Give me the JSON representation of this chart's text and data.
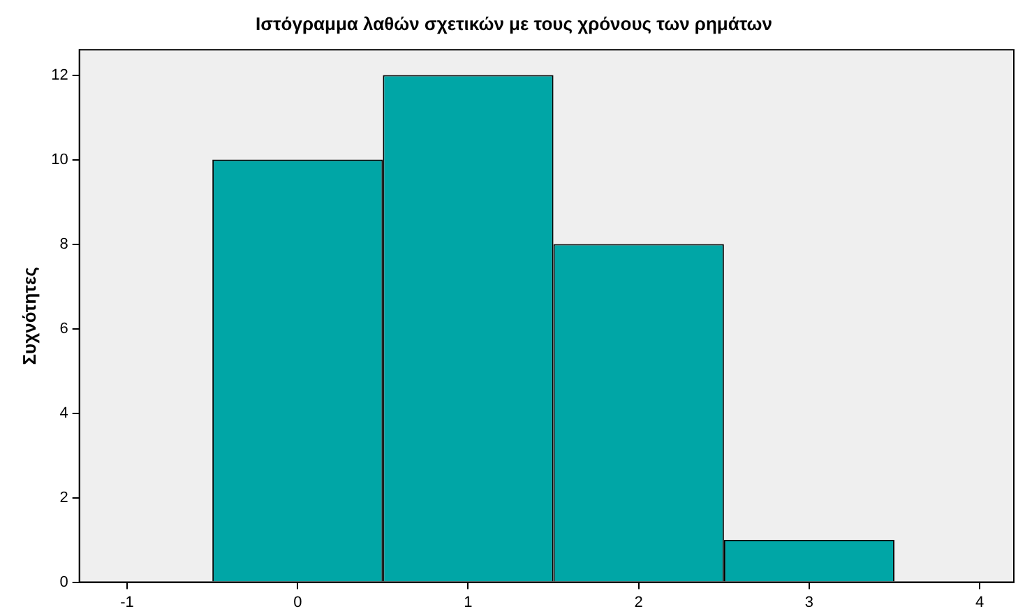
{
  "chart_data": {
    "type": "histogram",
    "title": "Ιστόγραμμα λαθών σχετικών με τους χρόνους των ρημάτων",
    "ylabel": "Συχνότητες",
    "bins": [
      -0.5,
      0.5,
      1.5,
      2.5,
      3.5
    ],
    "values": [
      10,
      12,
      8,
      1
    ],
    "color": "#00a6a6",
    "xlim": [
      -1.28,
      4.2
    ],
    "xticks": [
      -1,
      0,
      1,
      2,
      3,
      4
    ],
    "ylim": [
      0,
      12.6
    ],
    "yticks": [
      0,
      2,
      4,
      6,
      8,
      10,
      12
    ],
    "grid": false,
    "legend": false
  }
}
